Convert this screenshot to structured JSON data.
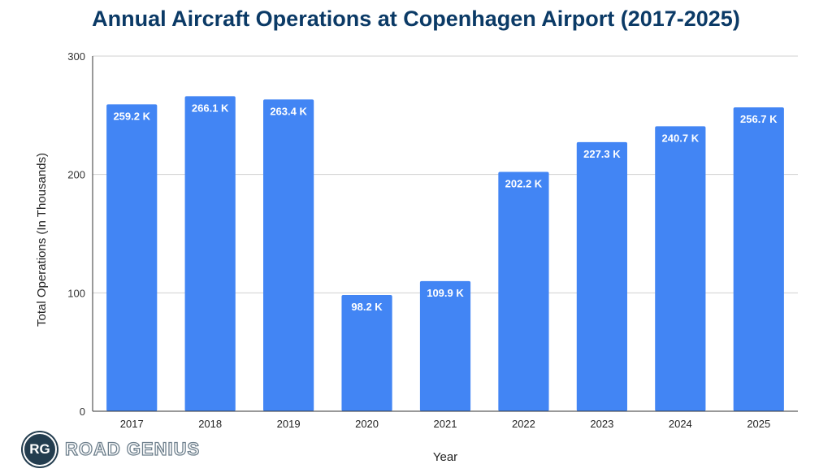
{
  "chart_data": {
    "type": "bar",
    "title": "Annual Aircraft Operations at Copenhagen Airport (2017-2025)",
    "xlabel": "Year",
    "ylabel": "Total Operations (In Thousands)",
    "categories": [
      "2017",
      "2018",
      "2019",
      "2020",
      "2021",
      "2022",
      "2023",
      "2024",
      "2025"
    ],
    "values": [
      259.2,
      266.1,
      263.4,
      98.2,
      109.9,
      202.2,
      227.3,
      240.7,
      256.7
    ],
    "data_labels": [
      "259.2 K",
      "266.1 K",
      "263.4 K",
      "98.2 K",
      "109.9 K",
      "202.2 K",
      "227.3 K",
      "240.7 K",
      "256.7 K"
    ],
    "ylim": [
      0,
      300
    ],
    "yticks": [
      0,
      100,
      200,
      300
    ],
    "grid": true,
    "legend": "none",
    "bar_color": "#4285f4"
  },
  "logo": {
    "initials": "RG",
    "name": "ROAD GENIUS"
  }
}
